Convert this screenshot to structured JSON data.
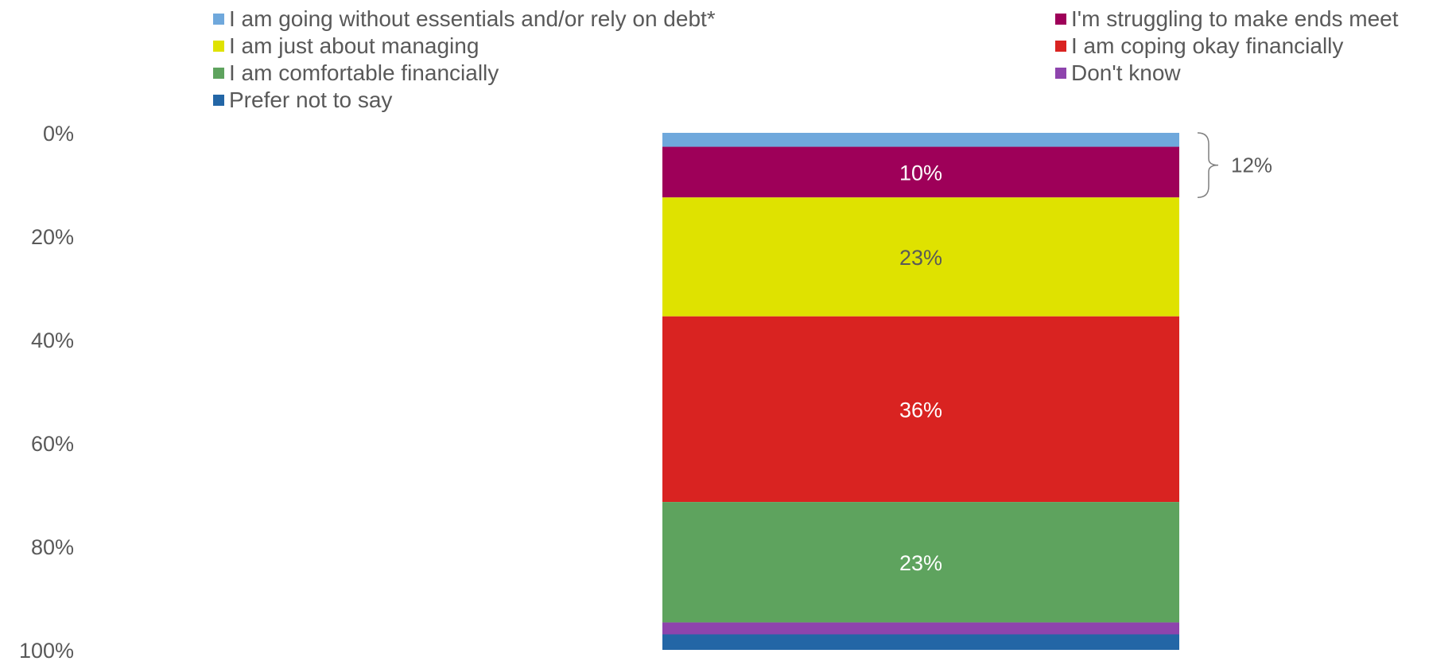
{
  "chart_data": {
    "type": "bar",
    "stacked": true,
    "orientation": "vertical",
    "y_axis": {
      "ticks": [
        "0%",
        "20%",
        "40%",
        "60%",
        "80%",
        "100%"
      ],
      "ylim": [
        0,
        100
      ],
      "inverted": true
    },
    "series": [
      {
        "name": "I am going without essentials and/or rely on debt*",
        "value": 2.7,
        "color": "#6fa8dc",
        "label": ""
      },
      {
        "name": "I'm struggling to make ends meet",
        "value": 9.8,
        "color": "#9e0059",
        "label": "10%"
      },
      {
        "name": "I am just about managing",
        "value": 23.0,
        "color": "#dfe200",
        "label": "23%"
      },
      {
        "name": "I am coping okay financially",
        "value": 35.9,
        "color": "#d92321",
        "label": "36%"
      },
      {
        "name": "I am comfortable financially",
        "value": 23.3,
        "color": "#5ea35e",
        "label": "23%"
      },
      {
        "name": "Don't know",
        "value": 2.3,
        "color": "#8e44ad",
        "label": ""
      },
      {
        "name": "Prefer not to say",
        "value": 3.0,
        "color": "#2366a6",
        "label": ""
      }
    ],
    "bracket": {
      "label": "12%",
      "spans": [
        "I am going without essentials and/or rely on debt*",
        "I'm struggling to make ends meet"
      ]
    },
    "legend": {
      "position": "top",
      "columns": 2
    }
  }
}
